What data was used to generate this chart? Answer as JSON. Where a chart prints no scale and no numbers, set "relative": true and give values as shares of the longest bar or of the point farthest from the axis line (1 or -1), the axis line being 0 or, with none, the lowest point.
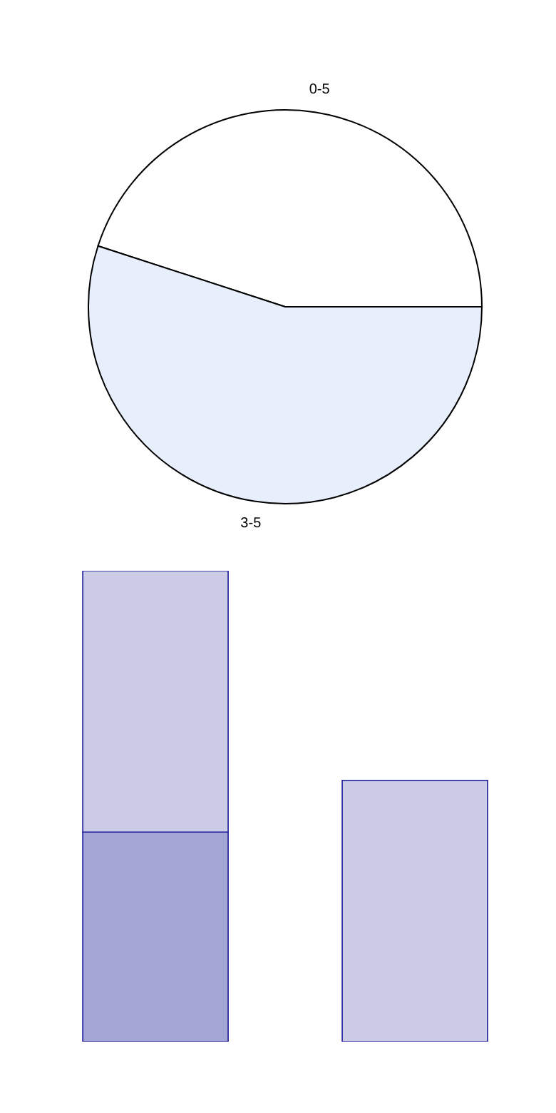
{
  "chart_data": [
    {
      "type": "pie",
      "categories": [
        "0-5",
        "3-5"
      ],
      "values": [
        45,
        55
      ],
      "colors": [
        "#ffffff",
        "#e8effc"
      ],
      "legend": false
    },
    {
      "type": "bar",
      "categories": [
        null,
        null
      ],
      "relative": true,
      "stacked": true,
      "legend": false,
      "grid": false,
      "tick_labels": false,
      "series": [
        {
          "color": "#a3a6d4",
          "values": [
            0.445,
            null
          ]
        },
        {
          "color": "#cccce6",
          "values": [
            0.555,
            0.555
          ]
        }
      ]
    }
  ]
}
